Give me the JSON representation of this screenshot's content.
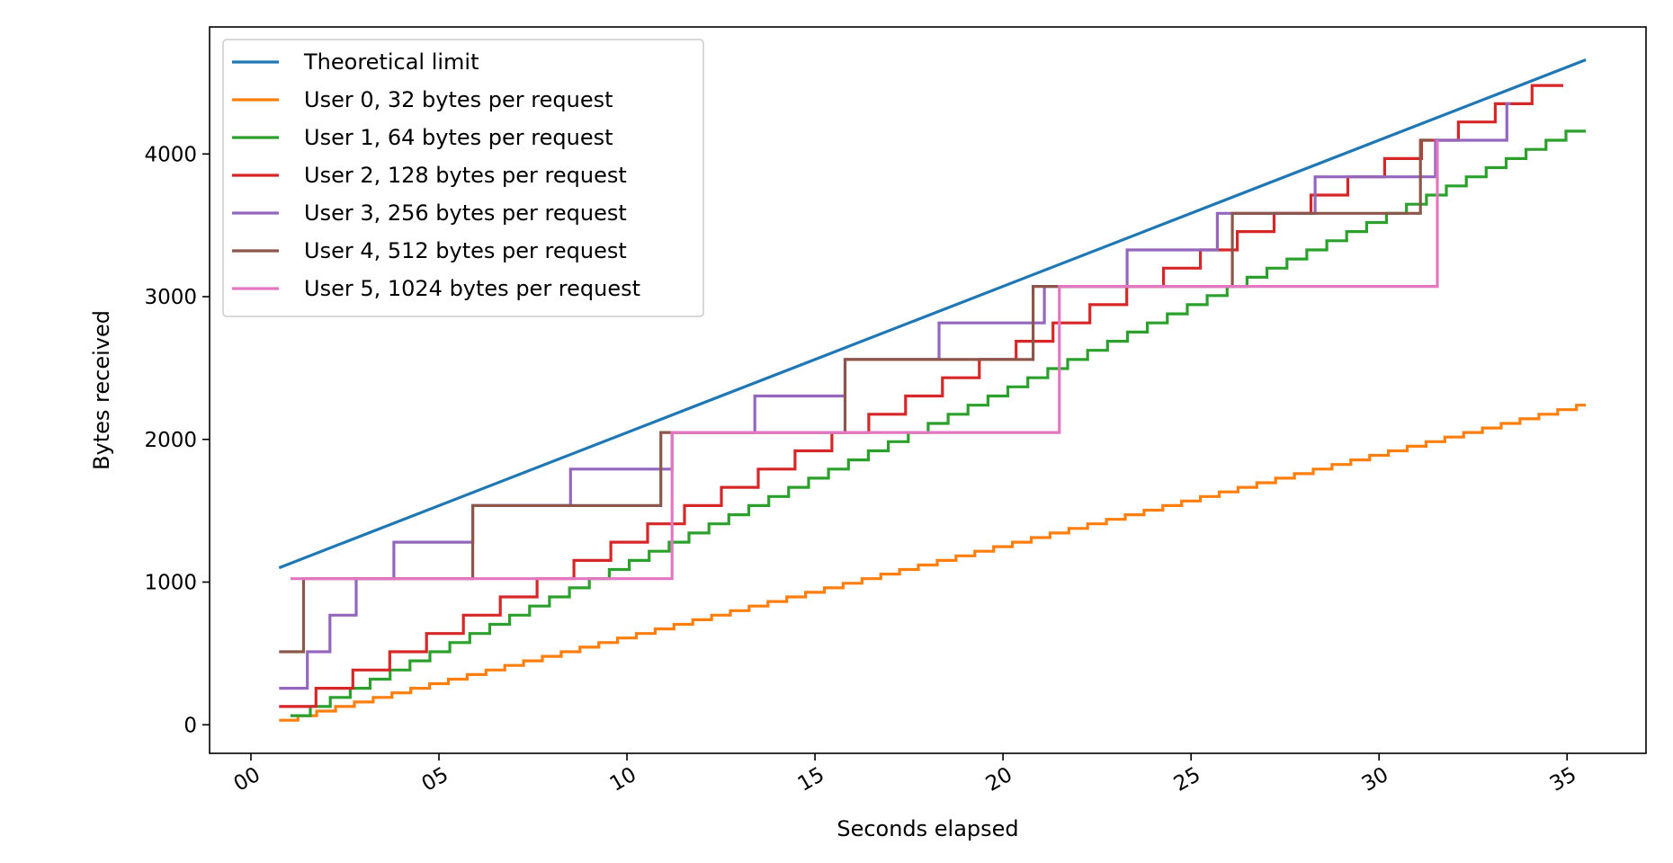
{
  "chart_data": {
    "type": "line",
    "step": true,
    "xlabel": "Seconds elapsed",
    "ylabel": "Bytes received",
    "xlim": [
      -1.1,
      37.1
    ],
    "ylim": [
      -200,
      4890
    ],
    "x_ticks": [
      0,
      5,
      10,
      15,
      20,
      25,
      30,
      35
    ],
    "x_tick_labels": [
      "00",
      "05",
      "10",
      "15",
      "20",
      "25",
      "30",
      "35"
    ],
    "y_ticks": [
      0,
      1000,
      2000,
      3000,
      4000
    ],
    "y_tick_labels": [
      "0",
      "1000",
      "2000",
      "3000",
      "4000"
    ],
    "grid": false,
    "legend_position": "upper-left",
    "series": [
      {
        "name": "Theoretical limit",
        "color": "#1f77b4",
        "kind": "line",
        "points": [
          [
            0.75,
            1100
          ],
          [
            35.5,
            4660
          ]
        ]
      },
      {
        "name": "User 0, 32 bytes per request",
        "color": "#ff7f0e",
        "kind": "step",
        "start_x": 0.75,
        "end_x": 35.5,
        "start_y": 32,
        "step_x": 0.5,
        "step_y": 32
      },
      {
        "name": "User 1, 64 bytes per request",
        "color": "#2ca02c",
        "kind": "step",
        "start_x": 1.05,
        "end_x": 35.5,
        "start_y": 64,
        "step_x": 0.53,
        "step_y": 64
      },
      {
        "name": "User 2, 128 bytes per request",
        "color": "#d62728",
        "kind": "step",
        "start_x": 0.75,
        "end_x": 34.9,
        "start_y": 128,
        "step_x": 0.98,
        "step_y": 128
      },
      {
        "name": "User 3, 256 bytes per request",
        "color": "#9467bd",
        "kind": "step",
        "start_x": 0.75,
        "end_x": 33.5,
        "start_y": 256,
        "step_x": 0.92,
        "step_y": 256,
        "jumps": [
          1.5,
          2.1,
          2.8,
          3.8,
          5.9,
          8.5,
          11.2,
          13.4,
          15.8,
          18.3,
          21.1,
          23.3,
          25.7,
          28.3,
          31.5,
          33.4
        ]
      },
      {
        "name": "User 4, 512 bytes per request",
        "color": "#8c564b",
        "kind": "step",
        "start_x": 0.75,
        "end_x": 31.4,
        "start_y": 512,
        "step_x": 5.0,
        "step_y": 512,
        "jumps": [
          1.4,
          5.9,
          10.9,
          15.8,
          20.8,
          26.1,
          31.1
        ]
      },
      {
        "name": "User 5, 1024 bytes per request",
        "color": "#e377c2",
        "kind": "step",
        "start_x": 1.05,
        "end_x": 31.55,
        "start_y": 1024,
        "step_x": 10.0,
        "step_y": 1024,
        "jumps": [
          11.2,
          21.5,
          31.55
        ]
      }
    ]
  }
}
